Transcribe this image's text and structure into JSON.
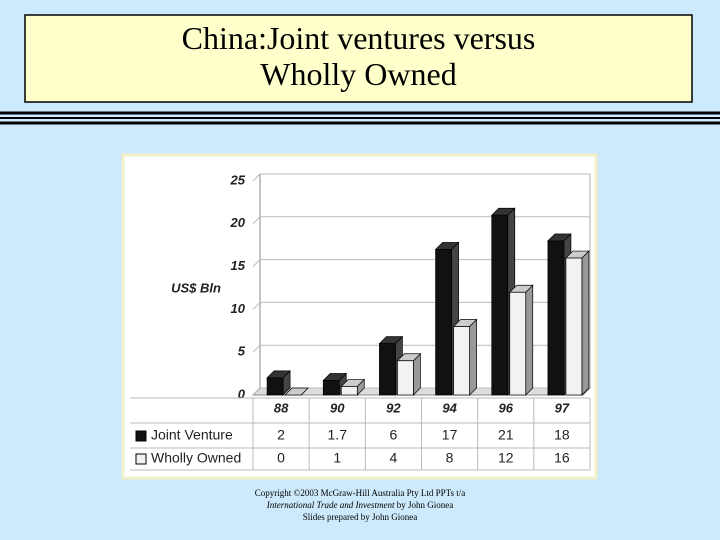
{
  "title": "China:Joint ventures versus Wholly Owned",
  "chart_data": {
    "type": "bar",
    "y_label": "US$ Bln",
    "categories": [
      "88",
      "90",
      "92",
      "94",
      "96",
      "97"
    ],
    "series": [
      {
        "name": "Joint Venture",
        "color": "#111111",
        "values": [
          2,
          1.7,
          6,
          17,
          21,
          18
        ]
      },
      {
        "name": "Wholly Owned",
        "color": "#f2f2f2",
        "values": [
          0,
          1,
          4,
          8,
          12,
          16
        ]
      }
    ],
    "ylim": [
      0,
      25
    ],
    "yticks": [
      0,
      5,
      10,
      15,
      20,
      25
    ],
    "grid": true
  },
  "footer": {
    "copyright": "Copyright ©2003 McGraw-Hill Australia Pty Ltd PPTs t/a",
    "book_title": "International Trade and Investment",
    "book_author": "by John Gionea",
    "credit": "Slides prepared by John Gionea"
  }
}
